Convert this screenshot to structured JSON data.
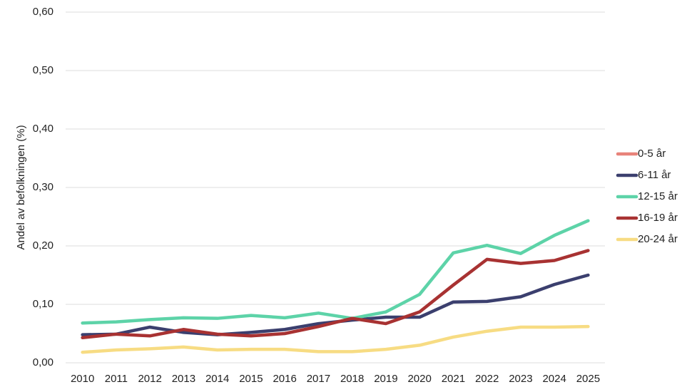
{
  "chart_data": {
    "type": "line",
    "y_label": "Andel av befolkningen (%)",
    "categories": [
      "2010",
      "2011",
      "2012",
      "2013",
      "2014",
      "2015",
      "2016",
      "2017",
      "2018",
      "2019",
      "2020",
      "2021",
      "2022",
      "2023",
      "2024",
      "2025"
    ],
    "ylim": [
      0,
      0.6
    ],
    "yticks": [
      {
        "value": 0,
        "label": "0,00"
      },
      {
        "value": 0.1,
        "label": "0,10"
      },
      {
        "value": 0.2,
        "label": "0,20"
      },
      {
        "value": 0.3,
        "label": "0,30"
      },
      {
        "value": 0.4,
        "label": "0,40"
      },
      {
        "value": 0.5,
        "label": "0,50"
      },
      {
        "value": 0.6,
        "label": "0,60"
      }
    ],
    "grid": true,
    "legend": "right",
    "series": [
      {
        "name": "0-5 år",
        "color": "#e8837a",
        "values": [
          null,
          null,
          null,
          null,
          null,
          null,
          null,
          null,
          null,
          null,
          null,
          null,
          null,
          null,
          null,
          null
        ]
      },
      {
        "name": "6-11 år",
        "color": "#3b3f6e",
        "values": [
          0.048,
          0.049,
          0.061,
          0.052,
          0.048,
          0.052,
          0.057,
          0.067,
          0.073,
          0.078,
          0.078,
          0.104,
          0.105,
          0.113,
          0.134,
          0.15
        ]
      },
      {
        "name": "12-15 år",
        "color": "#5dd3a8",
        "values": [
          0.068,
          0.07,
          0.074,
          0.077,
          0.076,
          0.081,
          0.077,
          0.085,
          0.076,
          0.087,
          0.117,
          0.188,
          0.201,
          0.187,
          0.218,
          0.243
        ]
      },
      {
        "name": "16-19 år",
        "color": "#a83232",
        "values": [
          0.043,
          0.049,
          0.046,
          0.057,
          0.049,
          0.046,
          0.05,
          0.062,
          0.076,
          0.067,
          0.087,
          0.133,
          0.177,
          0.17,
          0.175,
          0.192
        ]
      },
      {
        "name": "20-24 år",
        "color": "#f7dc83",
        "values": [
          0.018,
          0.022,
          0.024,
          0.027,
          0.022,
          0.023,
          0.023,
          0.019,
          0.019,
          0.023,
          0.03,
          0.044,
          0.054,
          0.061,
          0.061,
          0.062
        ]
      }
    ]
  }
}
